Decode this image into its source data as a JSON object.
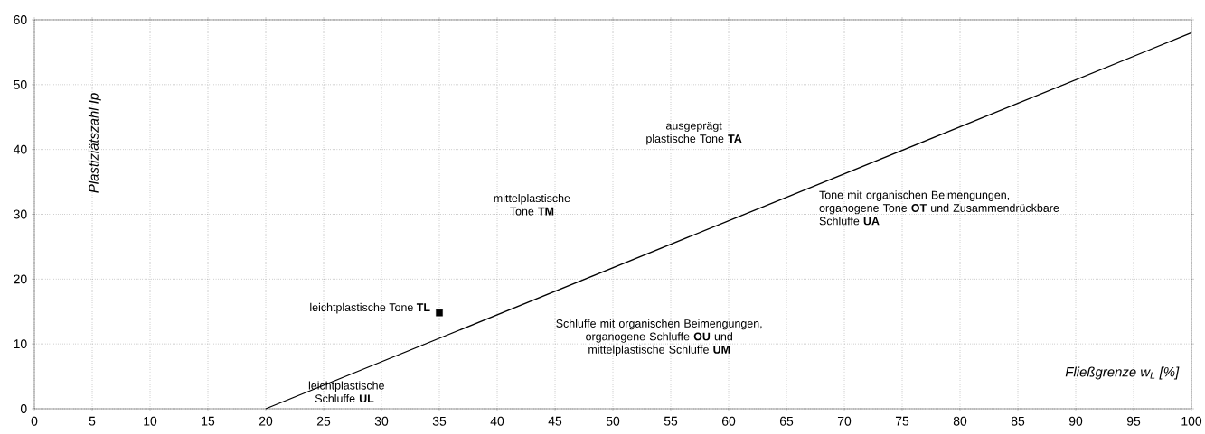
{
  "chart_data": {
    "type": "line",
    "xlabel": "Fließgrenze w$_{L}$ [%]",
    "ylabel": "Plastiziätszahl Ip",
    "series": [
      {
        "type": "line",
        "color": "#000000",
        "x": [
          20,
          100
        ],
        "values": [
          0,
          58
        ],
        "marker": "none"
      },
      {
        "type": "scatter",
        "color": "#000000",
        "x": [
          35
        ],
        "values": [
          14.8
        ],
        "marker": "square"
      }
    ],
    "xlim": [
      0,
      100
    ],
    "xticks": [
      0,
      5,
      10,
      15,
      20,
      25,
      30,
      35,
      40,
      45,
      50,
      55,
      60,
      65,
      70,
      75,
      80,
      85,
      90,
      95,
      100
    ],
    "ylim": [
      0,
      60
    ],
    "yticks": [
      0,
      10,
      20,
      30,
      40,
      50,
      60
    ],
    "grid": true,
    "annotations": [
      "leichtplastische Tone **TL**",
      "leichtplastische Schluffe **UL**",
      "mittelplastische Tone **TM**",
      "ausgeprägt plastische Tone **TA**",
      "Tone mit organischen Beimengungen, organogene Tone **OT** und Zusammendrückbare Schluffe **UA**",
      "Schluffe mit organischen Beimengungen, organogene Schluffe **OU** und mittelplastische Schluffe **UM**"
    ]
  }
}
